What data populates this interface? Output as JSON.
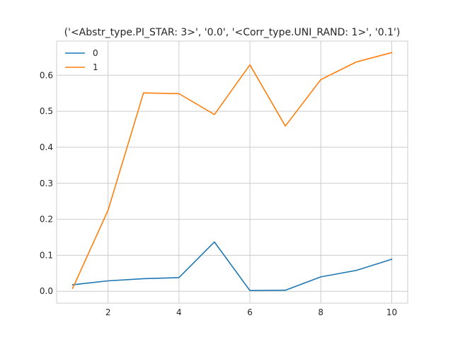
{
  "chart_data": {
    "type": "line",
    "title": "('<Abstr_type.PI_STAR: 3>', '0.0', '<Corr_type.UNI_RAND: 1>', '0.1')",
    "xlabel": "",
    "ylabel": "",
    "x": [
      1,
      2,
      3,
      4,
      5,
      6,
      7,
      8,
      9,
      10
    ],
    "xlim": [
      0.55,
      10.45
    ],
    "ylim": [
      -0.033,
      0.695
    ],
    "xticks": [
      2,
      4,
      6,
      8,
      10
    ],
    "yticks": [
      0.0,
      0.1,
      0.2,
      0.3,
      0.4,
      0.5,
      0.6
    ],
    "xtick_labels": [
      "2",
      "4",
      "6",
      "8",
      "10"
    ],
    "ytick_labels": [
      "0.0",
      "0.1",
      "0.2",
      "0.3",
      "0.4",
      "0.5",
      "0.6"
    ],
    "grid": true,
    "legend_position": "top-left",
    "series": [
      {
        "name": "0",
        "color": "#1f77b4",
        "values": [
          0.018,
          0.029,
          0.035,
          0.038,
          0.137,
          0.002,
          0.003,
          0.04,
          0.058,
          0.089
        ]
      },
      {
        "name": "1",
        "color": "#ff7f0e",
        "values": [
          0.008,
          0.225,
          0.551,
          0.549,
          0.491,
          0.629,
          0.459,
          0.588,
          0.637,
          0.663
        ]
      }
    ]
  }
}
